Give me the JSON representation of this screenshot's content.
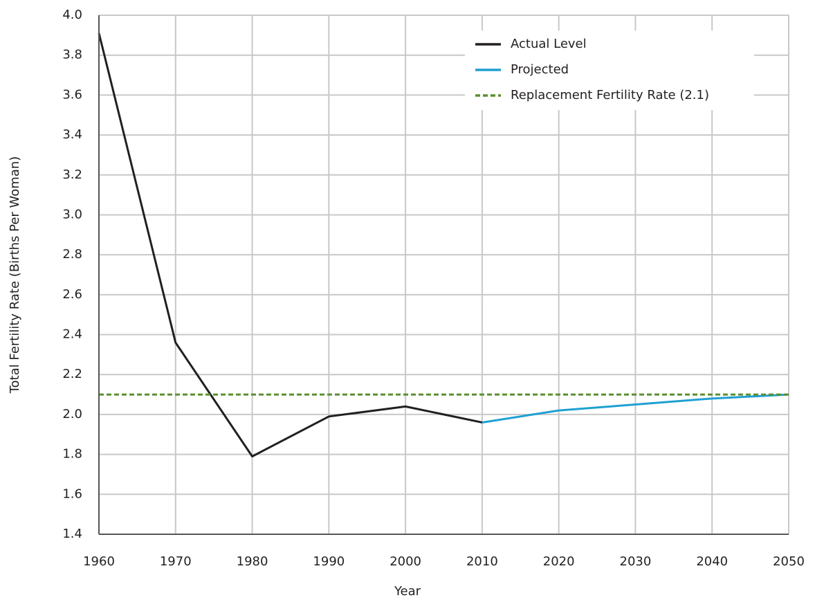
{
  "chart_data": {
    "type": "line",
    "x_label": "Year",
    "y_label": "Total Fertility Rate (Births Per Woman)",
    "x": [
      1960,
      1970,
      1980,
      1990,
      2000,
      2010,
      2020,
      2030,
      2040,
      2050
    ],
    "series": [
      {
        "name": "Actual Level",
        "color": "#231f20",
        "style": "solid",
        "values": [
          3.91,
          2.36,
          1.79,
          1.99,
          2.04,
          1.96,
          null,
          null,
          null,
          null
        ]
      },
      {
        "name": "Projected",
        "color": "#1fa0d2",
        "style": "solid",
        "values": [
          null,
          null,
          null,
          null,
          null,
          1.96,
          2.02,
          2.05,
          2.08,
          2.1
        ]
      },
      {
        "name": "Replacement Fertility Rate (2.1)",
        "color": "#5a8f2e",
        "style": "dashed",
        "values": [
          2.1,
          2.1,
          2.1,
          2.1,
          2.1,
          2.1,
          2.1,
          2.1,
          2.1,
          2.1
        ]
      }
    ],
    "xlim": [
      1960,
      2050
    ],
    "xticks": [
      1960,
      1970,
      1980,
      1990,
      2000,
      2010,
      2020,
      2030,
      2040,
      2050
    ],
    "ylim": [
      1.4,
      4.0
    ],
    "yticks": [
      1.4,
      1.6,
      1.8,
      {
        "value": 2.0,
        "label": "2.0"
      },
      2.2,
      2.4,
      2.6,
      2.8,
      {
        "value": 3.0,
        "label": "3.0"
      },
      3.2,
      3.4,
      3.6,
      3.8,
      {
        "value": 4.0,
        "label": "4.0"
      }
    ],
    "grid": true,
    "legend": "upper right"
  }
}
